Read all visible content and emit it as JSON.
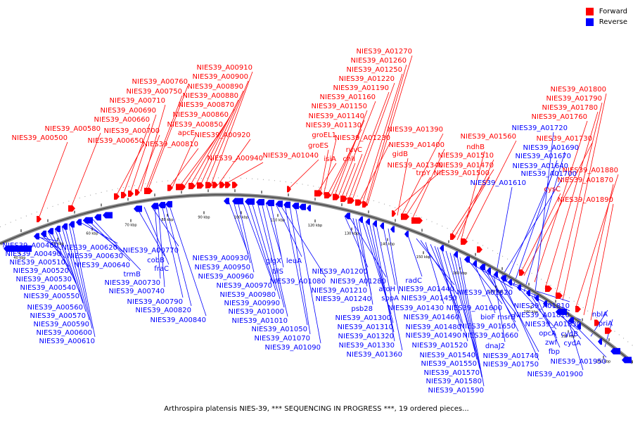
{
  "legend": {
    "forward_label": "Forward",
    "reverse_label": "Reverse",
    "forward_color": "#ff0000",
    "reverse_color": "#0000ff"
  },
  "caption": "Arthrospira platensis NIES-39, *** SEQUENCING IN PROGRESS ***, 19 ordered pieces...",
  "scale_ticks": [
    "40 kbp",
    "50 kbp",
    "60 kbp",
    "70 kbp",
    "80 kbp",
    "90 kbp",
    "100 kbp",
    "110 kbp",
    "120 kbp",
    "130 kbp",
    "140 kbp",
    "150 kbp",
    "160 kbp",
    "170 kbp",
    "180 kbp",
    "190 kbp",
    "200 kbp"
  ],
  "forward_genes": [
    {
      "name": "NIES39_A00500"
    },
    {
      "name": "NIES39_A00580"
    },
    {
      "name": "NIES39_A00650"
    },
    {
      "name": "NIES39_A00660"
    },
    {
      "name": "NIES39_A00690"
    },
    {
      "name": "NIES39_A00700"
    },
    {
      "name": "NIES39_A00710"
    },
    {
      "name": "NIES39_A00750"
    },
    {
      "name": "NIES39_A00760"
    },
    {
      "name": "NIES39_A00810"
    },
    {
      "name": "apcE"
    },
    {
      "name": "NIES39_A00850"
    },
    {
      "name": "NIES39_A00860"
    },
    {
      "name": "NIES39_A00870"
    },
    {
      "name": "NIES39_A00880"
    },
    {
      "name": "NIES39_A00890"
    },
    {
      "name": "NIES39_A00900"
    },
    {
      "name": "NIES39_A00910"
    },
    {
      "name": "NIES39_A00920"
    },
    {
      "name": "NIES39_A00940"
    },
    {
      "name": "NIES39_A01040"
    },
    {
      "name": "isiA"
    },
    {
      "name": "groES"
    },
    {
      "name": "groEL1"
    },
    {
      "name": "NIES39_A01130"
    },
    {
      "name": "NIES39_A01140"
    },
    {
      "name": "NIES39_A01150"
    },
    {
      "name": "NIES39_A01160"
    },
    {
      "name": "chlI"
    },
    {
      "name": "ruvC"
    },
    {
      "name": "NIES39_A01190"
    },
    {
      "name": "NIES39_A01220"
    },
    {
      "name": "NIES39_A01230"
    },
    {
      "name": "NIES39_A01250"
    },
    {
      "name": "NIES39_A01260"
    },
    {
      "name": "NIES39_A01270"
    },
    {
      "name": "NIES39_A01340"
    },
    {
      "name": "gidB"
    },
    {
      "name": "NIES39_A01390"
    },
    {
      "name": "trpY"
    },
    {
      "name": "NIES39_A01400"
    },
    {
      "name": "NIES39_A01470"
    },
    {
      "name": "NIES39_A01500"
    },
    {
      "name": "NIES39_A01510"
    },
    {
      "name": "ndhB"
    },
    {
      "name": "NIES39_A01560"
    },
    {
      "name": "cysC"
    },
    {
      "name": "NIES39_A01730"
    },
    {
      "name": "NIES39_A01760"
    },
    {
      "name": "NIES39_A01780"
    },
    {
      "name": "NIES39_A01790"
    },
    {
      "name": "NIES39_A01800"
    },
    {
      "name": "NIES39_A01880"
    },
    {
      "name": "NIES39_A01870"
    },
    {
      "name": "NIES39_A01890"
    }
  ],
  "reverse_genes_top": [
    {
      "name": "NIES39_A01720"
    },
    {
      "name": "NIES39_A01690"
    },
    {
      "name": "NIES39_A01670"
    },
    {
      "name": "NIES39_A01640"
    },
    {
      "name": "NIES39_A01700"
    },
    {
      "name": "NIES39_A01610"
    }
  ],
  "reverse_genes": [
    {
      "name": "NIES39_A00480"
    },
    {
      "name": "NIES39_A00490"
    },
    {
      "name": "NIES39_A00510"
    },
    {
      "name": "NIES39_A00520"
    },
    {
      "name": "NIES39_A00530"
    },
    {
      "name": "NIES39_A00540"
    },
    {
      "name": "NIES39_A00550"
    },
    {
      "name": "NIES39_A00560"
    },
    {
      "name": "NIES39_A00570"
    },
    {
      "name": "NIES39_A00590"
    },
    {
      "name": "NIES39_A00600"
    },
    {
      "name": "NIES39_A00610"
    },
    {
      "name": "NIES39_A00620"
    },
    {
      "name": "NIES39_A00630"
    },
    {
      "name": "NIES39_A00640"
    },
    {
      "name": "trmB"
    },
    {
      "name": "cobB"
    },
    {
      "name": "fraC"
    },
    {
      "name": "NIES39_A00770"
    },
    {
      "name": "NIES39_A00730"
    },
    {
      "name": "NIES39_A00740"
    },
    {
      "name": "NIES39_A00790"
    },
    {
      "name": "NIES39_A00820"
    },
    {
      "name": "NIES39_A00840"
    },
    {
      "name": "NIES39_A00930"
    },
    {
      "name": "NIES39_A00950"
    },
    {
      "name": "NIES39_A00960"
    },
    {
      "name": "NIES39_A00970"
    },
    {
      "name": "NIES39_A00980"
    },
    {
      "name": "NIES39_A00990"
    },
    {
      "name": "NIES39_A01000"
    },
    {
      "name": "NIES39_A01010"
    },
    {
      "name": "glgX"
    },
    {
      "name": "tilS"
    },
    {
      "name": "leuA"
    },
    {
      "name": "NIES39_A01080"
    },
    {
      "name": "NIES39_A01050"
    },
    {
      "name": "NIES39_A01070"
    },
    {
      "name": "NIES39_A01090"
    },
    {
      "name": "NIES39_A01200"
    },
    {
      "name": "NIES39_A01280"
    },
    {
      "name": "NIES39_A01210"
    },
    {
      "name": "NIES39_A01240"
    },
    {
      "name": "psb28"
    },
    {
      "name": "NIES39_A01300"
    },
    {
      "name": "NIES39_A01310"
    },
    {
      "name": "NIES39_A01320"
    },
    {
      "name": "NIES39_A01330"
    },
    {
      "name": "NIES39_A01360"
    },
    {
      "name": "aroH"
    },
    {
      "name": "sppA"
    },
    {
      "name": "radC"
    },
    {
      "name": "NIES39_A01440"
    },
    {
      "name": "NIES39_A01450"
    },
    {
      "name": "NIES39_A01430"
    },
    {
      "name": "NIES39_A01460"
    },
    {
      "name": "NIES39_A01480"
    },
    {
      "name": "NIES39_A01490"
    },
    {
      "name": "NIES39_A01520"
    },
    {
      "name": "NIES39_A01540"
    },
    {
      "name": "NIES39_A01550"
    },
    {
      "name": "NIES39_A01570"
    },
    {
      "name": "NIES39_A01580"
    },
    {
      "name": "NIES39_A01590"
    },
    {
      "name": "NIES39_A01620"
    },
    {
      "name": "NIES39_A01600"
    },
    {
      "name": "bioF"
    },
    {
      "name": "msrB"
    },
    {
      "name": "NIES39_A01650"
    },
    {
      "name": "NIES39_A01660"
    },
    {
      "name": "dnaJ2"
    },
    {
      "name": "NIES39_A01740"
    },
    {
      "name": "NIES39_A01750"
    },
    {
      "name": "NIES39_A01810"
    },
    {
      "name": "NIES39_A01820"
    },
    {
      "name": "opcA"
    },
    {
      "name": "NIES39_A01830"
    },
    {
      "name": "zwf"
    },
    {
      "name": "fbp"
    },
    {
      "name": "cydB"
    },
    {
      "name": "cydA"
    },
    {
      "name": "NIES39_A01900"
    },
    {
      "name": "NIES39_A01950"
    },
    {
      "name": "nblA"
    },
    {
      "name": "priA"
    }
  ]
}
